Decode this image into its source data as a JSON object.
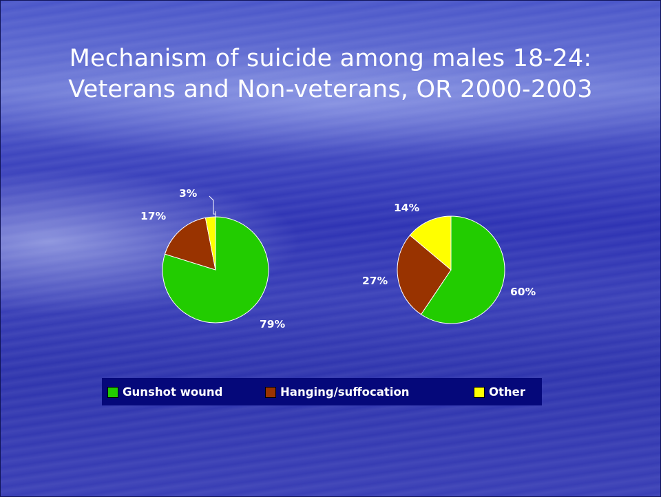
{
  "title_line1": "Mechanism of suicide among males 18-24:",
  "title_line2": "Veterans and Non-veterans, OR 2000-2003",
  "colors": {
    "gunshot": "#22cc00",
    "hanging": "#993300",
    "other": "#ffff00"
  },
  "chart_data": [
    {
      "type": "pie",
      "labels": [
        "Gunshot wound",
        "Hanging/suffocation",
        "Other"
      ],
      "values": [
        79,
        17,
        3
      ],
      "value_labels": [
        "79%",
        "17%",
        "3%"
      ]
    },
    {
      "type": "pie",
      "labels": [
        "Gunshot wound",
        "Hanging/suffocation",
        "Other"
      ],
      "values": [
        60,
        27,
        14
      ],
      "value_labels": [
        "60%",
        "27%",
        "14%"
      ]
    }
  ],
  "legend": {
    "items": [
      {
        "label": "Gunshot wound",
        "color": "#22cc00"
      },
      {
        "label": "Hanging/suffocation",
        "color": "#993300"
      },
      {
        "label": "Other",
        "color": "#ffff00"
      }
    ]
  }
}
